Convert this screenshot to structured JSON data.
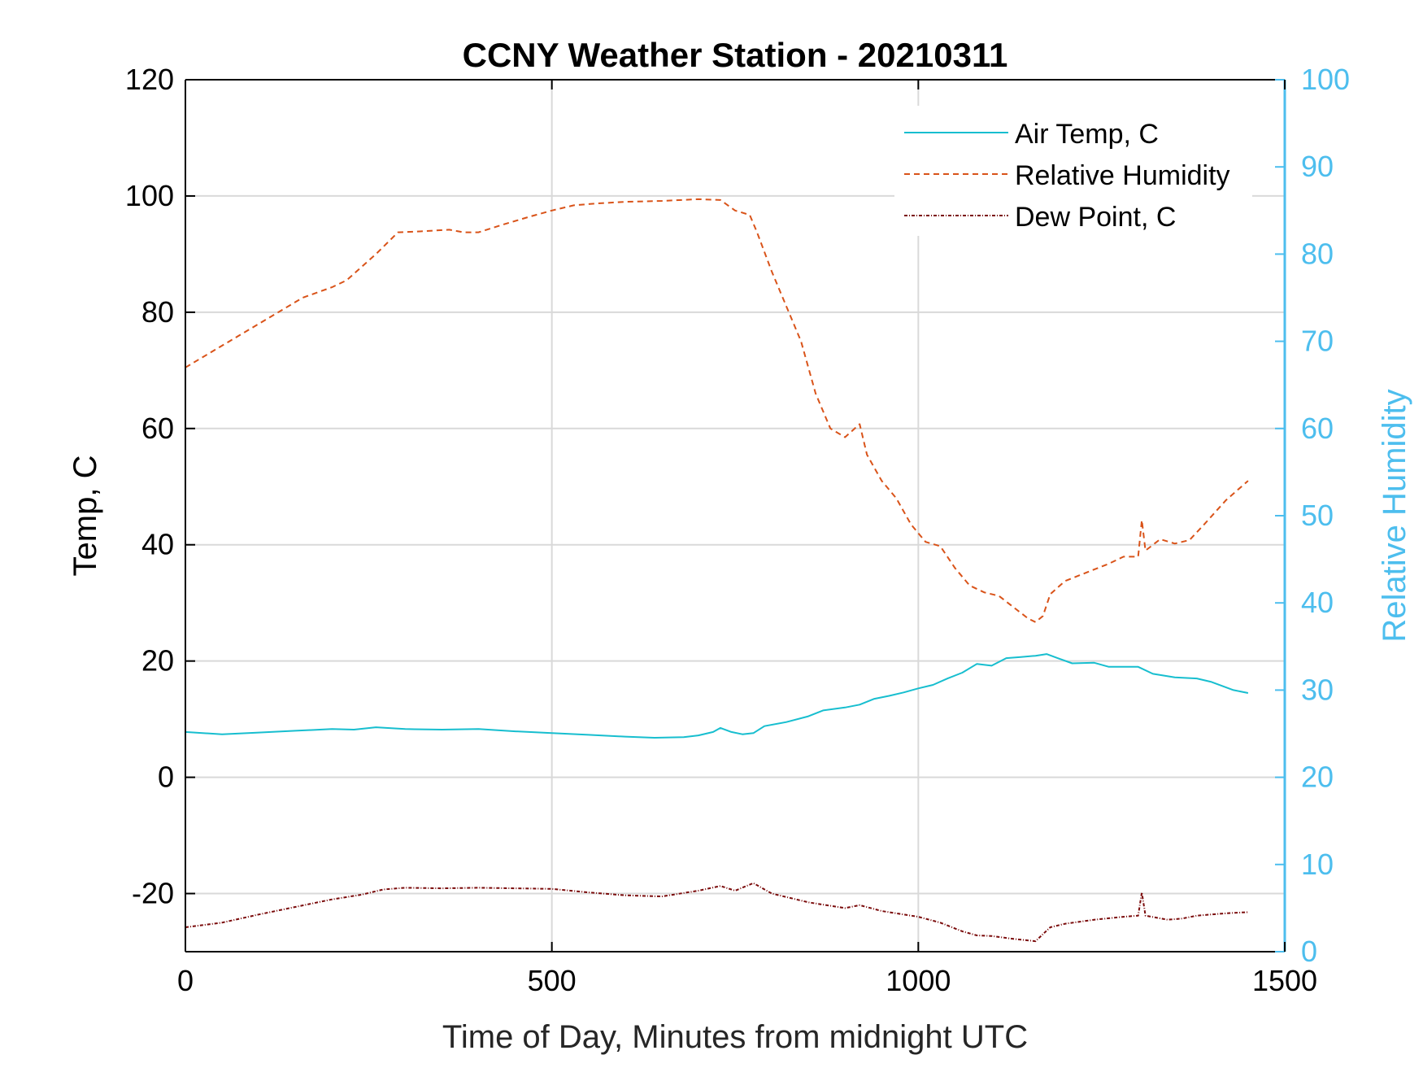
{
  "chart_data": {
    "type": "line",
    "title": "CCNY Weather Station - 20210311",
    "xlabel": "Time of Day, Minutes from midnight UTC",
    "ylabel_left": "Temp, C",
    "ylabel_right": "Relative Humidity",
    "xlim": [
      0,
      1500
    ],
    "ylim_left": [
      -30,
      120
    ],
    "ylim_right": [
      0,
      100
    ],
    "x_ticks": [
      0,
      500,
      1000,
      1500
    ],
    "y_ticks_left": [
      -20,
      0,
      20,
      40,
      60,
      80,
      100,
      120
    ],
    "y_ticks_right": [
      0,
      10,
      20,
      30,
      40,
      50,
      60,
      70,
      80,
      90,
      100
    ],
    "grid": true,
    "legend_position": "top-right",
    "right_axis_color": "#4DBEEE",
    "series": [
      {
        "name": "Air Temp, C",
        "axis": "left",
        "color": "#17BECF",
        "style": "solid",
        "points": [
          [
            0,
            7.8
          ],
          [
            50,
            7.4
          ],
          [
            100,
            7.7
          ],
          [
            150,
            8.0
          ],
          [
            200,
            8.3
          ],
          [
            230,
            8.2
          ],
          [
            260,
            8.6
          ],
          [
            300,
            8.3
          ],
          [
            350,
            8.2
          ],
          [
            400,
            8.3
          ],
          [
            450,
            7.9
          ],
          [
            500,
            7.6
          ],
          [
            550,
            7.3
          ],
          [
            600,
            7.0
          ],
          [
            640,
            6.8
          ],
          [
            680,
            6.9
          ],
          [
            700,
            7.2
          ],
          [
            720,
            7.8
          ],
          [
            730,
            8.5
          ],
          [
            745,
            7.8
          ],
          [
            760,
            7.4
          ],
          [
            775,
            7.6
          ],
          [
            790,
            8.8
          ],
          [
            820,
            9.5
          ],
          [
            850,
            10.5
          ],
          [
            870,
            11.5
          ],
          [
            900,
            12.0
          ],
          [
            920,
            12.5
          ],
          [
            940,
            13.5
          ],
          [
            960,
            14.0
          ],
          [
            980,
            14.6
          ],
          [
            1000,
            15.3
          ],
          [
            1020,
            15.9
          ],
          [
            1040,
            17.0
          ],
          [
            1060,
            18.0
          ],
          [
            1080,
            19.5
          ],
          [
            1100,
            19.2
          ],
          [
            1120,
            20.5
          ],
          [
            1140,
            20.7
          ],
          [
            1160,
            20.9
          ],
          [
            1175,
            21.2
          ],
          [
            1190,
            20.5
          ],
          [
            1210,
            19.6
          ],
          [
            1240,
            19.7
          ],
          [
            1260,
            19.0
          ],
          [
            1300,
            19.0
          ],
          [
            1320,
            17.8
          ],
          [
            1350,
            17.2
          ],
          [
            1380,
            17.0
          ],
          [
            1400,
            16.4
          ],
          [
            1430,
            15.0
          ],
          [
            1450,
            14.5
          ]
        ]
      },
      {
        "name": "Relative Humidity",
        "axis": "right",
        "color": "#D95319",
        "style": "dashed",
        "points": [
          [
            0,
            67
          ],
          [
            30,
            68.5
          ],
          [
            60,
            70
          ],
          [
            100,
            72
          ],
          [
            130,
            73.5
          ],
          [
            160,
            75
          ],
          [
            200,
            76.2
          ],
          [
            220,
            77
          ],
          [
            240,
            78.5
          ],
          [
            260,
            80
          ],
          [
            290,
            82.5
          ],
          [
            320,
            82.6
          ],
          [
            360,
            82.8
          ],
          [
            380,
            82.5
          ],
          [
            400,
            82.5
          ],
          [
            430,
            83.3
          ],
          [
            470,
            84.3
          ],
          [
            500,
            85
          ],
          [
            530,
            85.6
          ],
          [
            560,
            85.8
          ],
          [
            600,
            86
          ],
          [
            650,
            86.1
          ],
          [
            700,
            86.3
          ],
          [
            730,
            86.2
          ],
          [
            750,
            85
          ],
          [
            770,
            84.5
          ],
          [
            780,
            82.5
          ],
          [
            800,
            78
          ],
          [
            820,
            74
          ],
          [
            840,
            70
          ],
          [
            860,
            64
          ],
          [
            880,
            60
          ],
          [
            900,
            59
          ],
          [
            920,
            60.5
          ],
          [
            930,
            57
          ],
          [
            950,
            54
          ],
          [
            970,
            52
          ],
          [
            990,
            49
          ],
          [
            1010,
            47
          ],
          [
            1030,
            46.5
          ],
          [
            1050,
            44
          ],
          [
            1070,
            42
          ],
          [
            1090,
            41.2
          ],
          [
            1110,
            40.8
          ],
          [
            1130,
            39.5
          ],
          [
            1150,
            38.2
          ],
          [
            1160,
            37.8
          ],
          [
            1170,
            38.5
          ],
          [
            1180,
            41
          ],
          [
            1200,
            42.5
          ],
          [
            1230,
            43.5
          ],
          [
            1260,
            44.5
          ],
          [
            1280,
            45.3
          ],
          [
            1300,
            45.3
          ],
          [
            1305,
            49.5
          ],
          [
            1310,
            46
          ],
          [
            1330,
            47.3
          ],
          [
            1350,
            46.8
          ],
          [
            1370,
            47.2
          ],
          [
            1390,
            49
          ],
          [
            1420,
            51.8
          ],
          [
            1450,
            54
          ]
        ]
      },
      {
        "name": "Dew Point, C",
        "axis": "left",
        "color": "#7A0A0A",
        "style": "dash-dot",
        "points": [
          [
            0,
            -25.8
          ],
          [
            50,
            -25
          ],
          [
            100,
            -23.6
          ],
          [
            150,
            -22.3
          ],
          [
            200,
            -21
          ],
          [
            240,
            -20.2
          ],
          [
            270,
            -19.3
          ],
          [
            300,
            -19
          ],
          [
            350,
            -19.1
          ],
          [
            400,
            -19
          ],
          [
            450,
            -19.1
          ],
          [
            500,
            -19.2
          ],
          [
            550,
            -19.8
          ],
          [
            600,
            -20.3
          ],
          [
            650,
            -20.5
          ],
          [
            700,
            -19.5
          ],
          [
            730,
            -18.7
          ],
          [
            750,
            -19.5
          ],
          [
            775,
            -18.2
          ],
          [
            800,
            -20
          ],
          [
            850,
            -21.5
          ],
          [
            900,
            -22.5
          ],
          [
            920,
            -22
          ],
          [
            950,
            -23
          ],
          [
            1000,
            -24
          ],
          [
            1030,
            -25
          ],
          [
            1060,
            -26.5
          ],
          [
            1080,
            -27.2
          ],
          [
            1100,
            -27.3
          ],
          [
            1130,
            -27.8
          ],
          [
            1160,
            -28.2
          ],
          [
            1180,
            -25.8
          ],
          [
            1200,
            -25.2
          ],
          [
            1240,
            -24.5
          ],
          [
            1280,
            -24
          ],
          [
            1300,
            -23.8
          ],
          [
            1305,
            -19.8
          ],
          [
            1310,
            -23.8
          ],
          [
            1340,
            -24.5
          ],
          [
            1360,
            -24.3
          ],
          [
            1380,
            -23.8
          ],
          [
            1420,
            -23.4
          ],
          [
            1450,
            -23.2
          ]
        ]
      }
    ]
  }
}
